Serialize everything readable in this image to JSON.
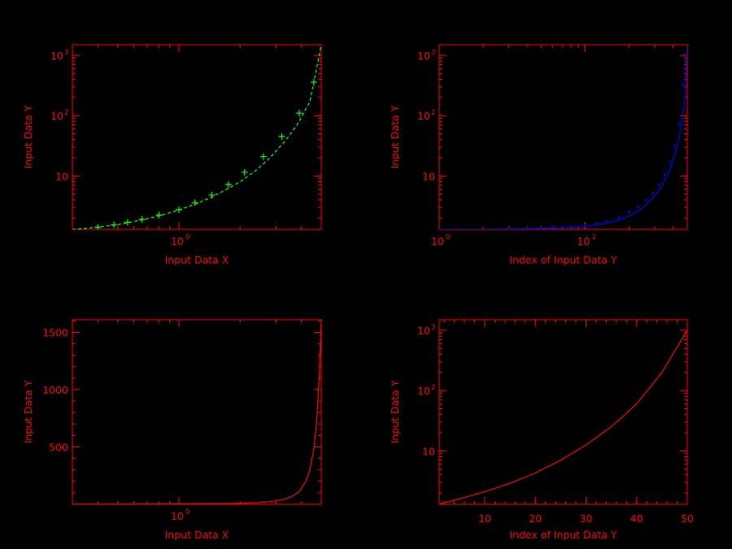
{
  "chart_data": [
    {
      "type": "line",
      "panel": "top-left",
      "xlabel": "Input Data X",
      "ylabel": "Input Data Y",
      "x_scale": "log",
      "y_scale": "log",
      "xlim": [
        0.3,
        5.0
      ],
      "ylim": [
        1.3,
        1500
      ],
      "x_major_ticks": [
        {
          "value": 1,
          "base": "10",
          "exp": "0"
        }
      ],
      "y_major_ticks": [
        {
          "value": 10,
          "base": "10",
          "exp": ""
        },
        {
          "value": 100,
          "base": "10",
          "exp": "2"
        },
        {
          "value": 1000,
          "base": "10",
          "exp": "3"
        }
      ],
      "series": [
        {
          "color": "#00ff00",
          "style": "dashed",
          "x": [
            0.3,
            0.35,
            0.42,
            0.5,
            0.6,
            0.7,
            0.85,
            1.0,
            1.2,
            1.4,
            1.7,
            2.0,
            2.4,
            2.8,
            3.3,
            3.8,
            4.4,
            5.0
          ],
          "y": [
            1.3,
            1.35,
            1.45,
            1.55,
            1.75,
            1.95,
            2.3,
            2.72,
            3.4,
            4.2,
            5.9,
            8.0,
            12.5,
            20.0,
            37.0,
            70.0,
            170,
            1500
          ]
        },
        {
          "color": "#00ff00",
          "style": "plus-markers",
          "x": [
            0.4,
            0.48,
            0.56,
            0.66,
            0.8,
            1.0,
            1.2,
            1.45,
            1.75,
            2.1,
            2.6,
            3.2,
            3.9,
            4.6
          ],
          "y": [
            1.4,
            1.55,
            1.7,
            1.9,
            2.25,
            2.75,
            3.6,
            4.8,
            7.2,
            11.5,
            21.0,
            45.0,
            110,
            360
          ]
        }
      ]
    },
    {
      "type": "line",
      "panel": "top-right",
      "xlabel": "Index of Input Data Y",
      "ylabel": "Input Data Y",
      "x_scale": "log",
      "y_scale": "log",
      "xlim": [
        1,
        50
      ],
      "ylim": [
        1.3,
        1500
      ],
      "x_major_ticks": [
        {
          "value": 1,
          "base": "10",
          "exp": "0"
        },
        {
          "value": 10,
          "base": "10",
          "exp": "1"
        }
      ],
      "y_major_ticks": [
        {
          "value": 10,
          "base": "10",
          "exp": ""
        },
        {
          "value": 100,
          "base": "10",
          "exp": "2"
        },
        {
          "value": 1000,
          "base": "10",
          "exp": "3"
        }
      ],
      "series": [
        {
          "color": "#0000ff",
          "style": "solid",
          "x": [
            1,
            2,
            4,
            6,
            8,
            10,
            12,
            15,
            18,
            21,
            24,
            27,
            30,
            33,
            36,
            39,
            42,
            45,
            48,
            50
          ],
          "y": [
            1.3,
            1.3,
            1.32,
            1.36,
            1.4,
            1.45,
            1.55,
            1.7,
            1.95,
            2.3,
            2.8,
            3.6,
            4.7,
            6.5,
            9.5,
            15.0,
            27.0,
            55.0,
            180,
            1400
          ]
        },
        {
          "color": "#0000ff",
          "style": "dot-markers",
          "x": [
            4,
            5,
            6,
            7,
            8,
            10,
            12,
            14,
            17,
            20,
            23,
            26,
            29,
            32,
            35,
            38,
            41,
            44,
            47
          ],
          "y": [
            1.33,
            1.35,
            1.38,
            1.4,
            1.43,
            1.5,
            1.62,
            1.78,
            2.05,
            2.55,
            3.1,
            4.0,
            5.2,
            7.2,
            10.5,
            17.0,
            32.0,
            75.0,
            320
          ]
        }
      ]
    },
    {
      "type": "line",
      "panel": "bottom-left",
      "xlabel": "Input Data X",
      "ylabel": "Input Data Y",
      "x_scale": "log",
      "y_scale": "linear",
      "xlim": [
        0.3,
        5.0
      ],
      "ylim": [
        0,
        1610
      ],
      "x_major_ticks": [
        {
          "value": 1,
          "base": "10",
          "exp": "0"
        }
      ],
      "y_major_ticks": [
        {
          "value": 500,
          "label": "500"
        },
        {
          "value": 1000,
          "label": "1000"
        },
        {
          "value": 1500,
          "label": "1500"
        }
      ],
      "series": [
        {
          "color": "#ff0000",
          "style": "solid",
          "x": [
            0.3,
            0.5,
            0.8,
            1.0,
            1.5,
            2.0,
            2.5,
            3.0,
            3.3,
            3.6,
            3.9,
            4.2,
            4.4,
            4.6,
            4.75,
            4.9,
            5.0
          ],
          "y": [
            1.3,
            1.6,
            2.2,
            2.7,
            5,
            8,
            14,
            30,
            45,
            70,
            110,
            200,
            300,
            480,
            720,
            1150,
            1590
          ]
        }
      ]
    },
    {
      "type": "line",
      "panel": "bottom-right",
      "xlabel": "Index of Input Data Y",
      "ylabel": "Input Data Y",
      "x_scale": "linear",
      "y_scale": "log",
      "xlim": [
        1,
        50
      ],
      "ylim": [
        1.3,
        1500
      ],
      "x_major_ticks": [
        {
          "value": 10,
          "label": "10"
        },
        {
          "value": 20,
          "label": "20"
        },
        {
          "value": 30,
          "label": "30"
        },
        {
          "value": 40,
          "label": "40"
        },
        {
          "value": 50,
          "label": "50"
        }
      ],
      "y_major_ticks": [
        {
          "value": 10,
          "base": "10",
          "exp": ""
        },
        {
          "value": 100,
          "base": "10",
          "exp": "2"
        },
        {
          "value": 1000,
          "base": "10",
          "exp": "3"
        }
      ],
      "series": [
        {
          "color": "#ff0000",
          "style": "solid",
          "x": [
            1,
            5,
            10,
            15,
            20,
            25,
            30,
            35,
            40,
            45,
            50
          ],
          "y": [
            1.3,
            1.6,
            2.1,
            2.9,
            4.3,
            7.0,
            12.5,
            25,
            60,
            200,
            1000
          ]
        }
      ]
    }
  ]
}
